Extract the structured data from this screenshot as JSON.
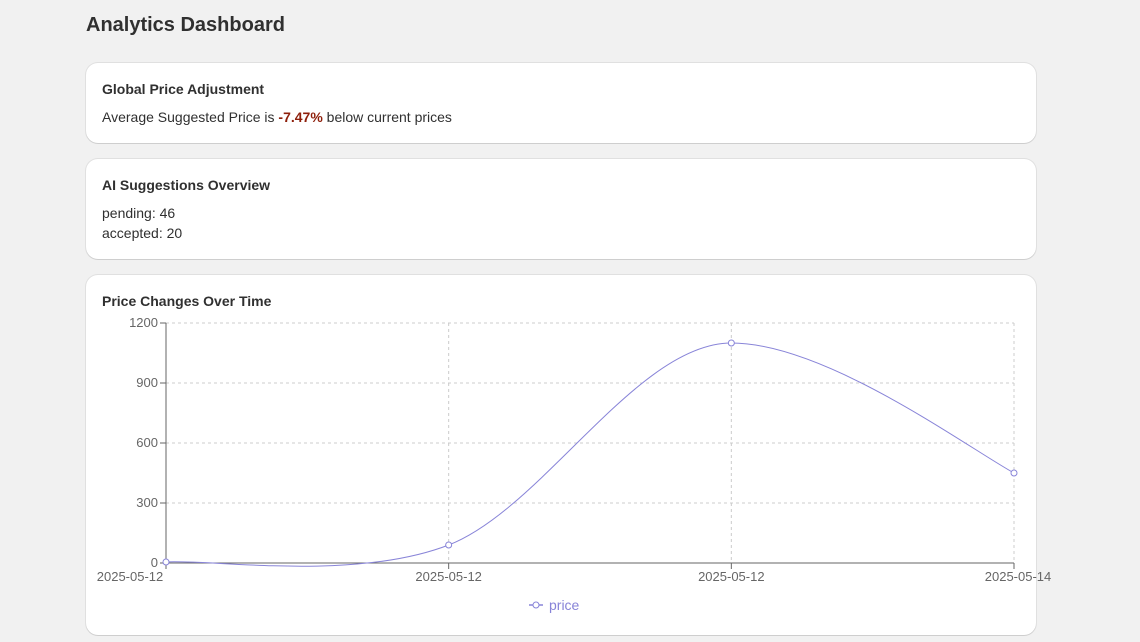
{
  "page": {
    "title": "Analytics Dashboard"
  },
  "price_adjustment": {
    "title": "Global Price Adjustment",
    "prefix": "Average Suggested Price is",
    "value": "-7.47%",
    "suffix": "below current prices"
  },
  "ai_overview": {
    "title": "AI Suggestions Overview",
    "items": [
      {
        "label": "pending",
        "count": 46
      },
      {
        "label": "accepted",
        "count": 20
      }
    ]
  },
  "chart_card": {
    "title": "Price Changes Over Time"
  },
  "chart_data": {
    "type": "line",
    "x": [
      "2025-05-12",
      "2025-05-12",
      "2025-05-12",
      "2025-05-14"
    ],
    "series": [
      {
        "name": "price",
        "values": [
          5,
          90,
          1100,
          450
        ],
        "color": "#8884d8"
      }
    ],
    "yticks": [
      0,
      300,
      600,
      900,
      1200
    ],
    "ylim": [
      0,
      1200
    ],
    "grid": true,
    "legend": "bottom"
  }
}
